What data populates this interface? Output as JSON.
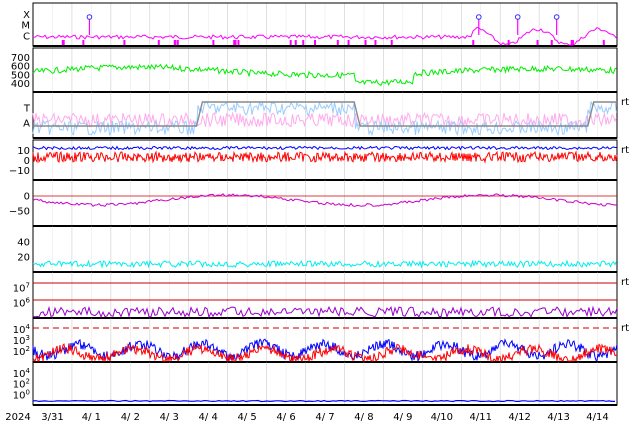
{
  "chart_data": {
    "type": "line",
    "x_ticks": [
      "3/31",
      "4/ 1",
      "4/ 2",
      "4/ 3",
      "4/ 4",
      "4/ 5",
      "4/ 6",
      "4/ 7",
      "4/ 8",
      "4/ 9",
      "4/10",
      "4/11",
      "4/12",
      "4/13",
      "4/14"
    ],
    "year_label": "2024",
    "panels": [
      {
        "id": "flare",
        "ylabels": [
          "X",
          "M",
          "C"
        ],
        "series": [
          {
            "color": "#ff00ff"
          }
        ],
        "ring_markers": [
          "4/ 1",
          "4/11",
          "4/12",
          "4/13"
        ]
      },
      {
        "id": "speed",
        "ylabels": [
          "700",
          "600",
          "500",
          "400"
        ],
        "ylim": [
          350,
          750
        ],
        "series": [
          {
            "color": "#00ee00"
          }
        ]
      },
      {
        "id": "sector",
        "ylabels": [
          "T",
          "A"
        ],
        "side_mark": "rt",
        "series": [
          {
            "color": "#99ccff"
          },
          {
            "color": "#ffaaee"
          },
          {
            "color": "#888888"
          }
        ]
      },
      {
        "id": "imf",
        "ylabels": [
          "10",
          "0",
          "−10"
        ],
        "ylim": [
          -15,
          15
        ],
        "side_mark": "rt",
        "series": [
          {
            "color": "#0000ff"
          },
          {
            "color": "#ff0000"
          }
        ]
      },
      {
        "id": "dst",
        "ylabels": [
          "0",
          "−50"
        ],
        "ylim": [
          -90,
          30
        ],
        "series": [
          {
            "color": "#cc00cc"
          }
        ]
      },
      {
        "id": "density",
        "ylabels": [
          "40",
          "20"
        ],
        "ylim": [
          0,
          55
        ],
        "series": [
          {
            "color": "#00eeee"
          }
        ]
      },
      {
        "id": "electron",
        "ylabels": [
          "10",
          "10"
        ],
        "ylabel_exp": [
          "7",
          "6"
        ],
        "side_mark": "rt",
        "series": [
          {
            "color": "#9900cc"
          }
        ]
      },
      {
        "id": "proton",
        "ylabels": [
          "10",
          "10",
          "10"
        ],
        "ylabel_exp": [
          "4",
          "3",
          "2"
        ],
        "side_mark": "rt",
        "series": [
          {
            "color": "#0000ff"
          },
          {
            "color": "#ff0000"
          }
        ]
      },
      {
        "id": "cosmic",
        "ylabels": [
          "10",
          "10",
          "10"
        ],
        "ylabel_exp": [
          "4",
          "2",
          "0"
        ],
        "series": [
          {
            "color": "#0000ff"
          }
        ]
      }
    ]
  }
}
